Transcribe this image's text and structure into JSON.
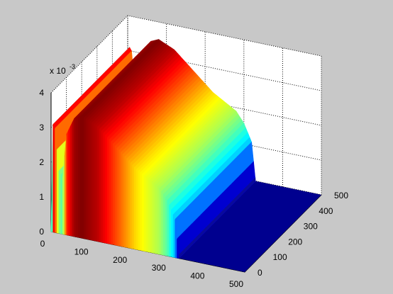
{
  "chart_data": {
    "type": "surface3d",
    "x_ticks": [
      "0",
      "100",
      "200",
      "300",
      "400",
      "500"
    ],
    "y_ticks": [
      "0",
      "100",
      "200",
      "300",
      "400",
      "500"
    ],
    "z_ticks": [
      "0",
      "1",
      "2",
      "3",
      "4"
    ],
    "z_exponent_base": "x 10",
    "z_exponent_power": "-3",
    "xlim": [
      0,
      500
    ],
    "ylim": [
      0,
      500
    ],
    "zlim": [
      0,
      0.004
    ],
    "grid": true,
    "colormap": "jet",
    "surface_profile_along_x": {
      "x": [
        0,
        5,
        10,
        20,
        30,
        40,
        60,
        80,
        100,
        120,
        150,
        180,
        200,
        220,
        250,
        280,
        300,
        320,
        330
      ],
      "z": [
        0.0,
        0.0031,
        0.003,
        0.0018,
        0.0016,
        0.0029,
        0.0034,
        0.0035,
        0.0034,
        0.0033,
        0.003,
        0.0027,
        0.0025,
        0.0023,
        0.0021,
        0.0019,
        0.0016,
        0.0011,
        0.0
      ]
    },
    "surface_y_extent": [
      0,
      500
    ],
    "zero_plane": {
      "x_range": [
        330,
        500
      ],
      "y_range": [
        0,
        500
      ],
      "z": 0
    },
    "colors": {
      "background": "#c8c8c8",
      "axes_background": "#ffffff",
      "zero_plane": "#00008f",
      "grid": "#000000"
    }
  }
}
